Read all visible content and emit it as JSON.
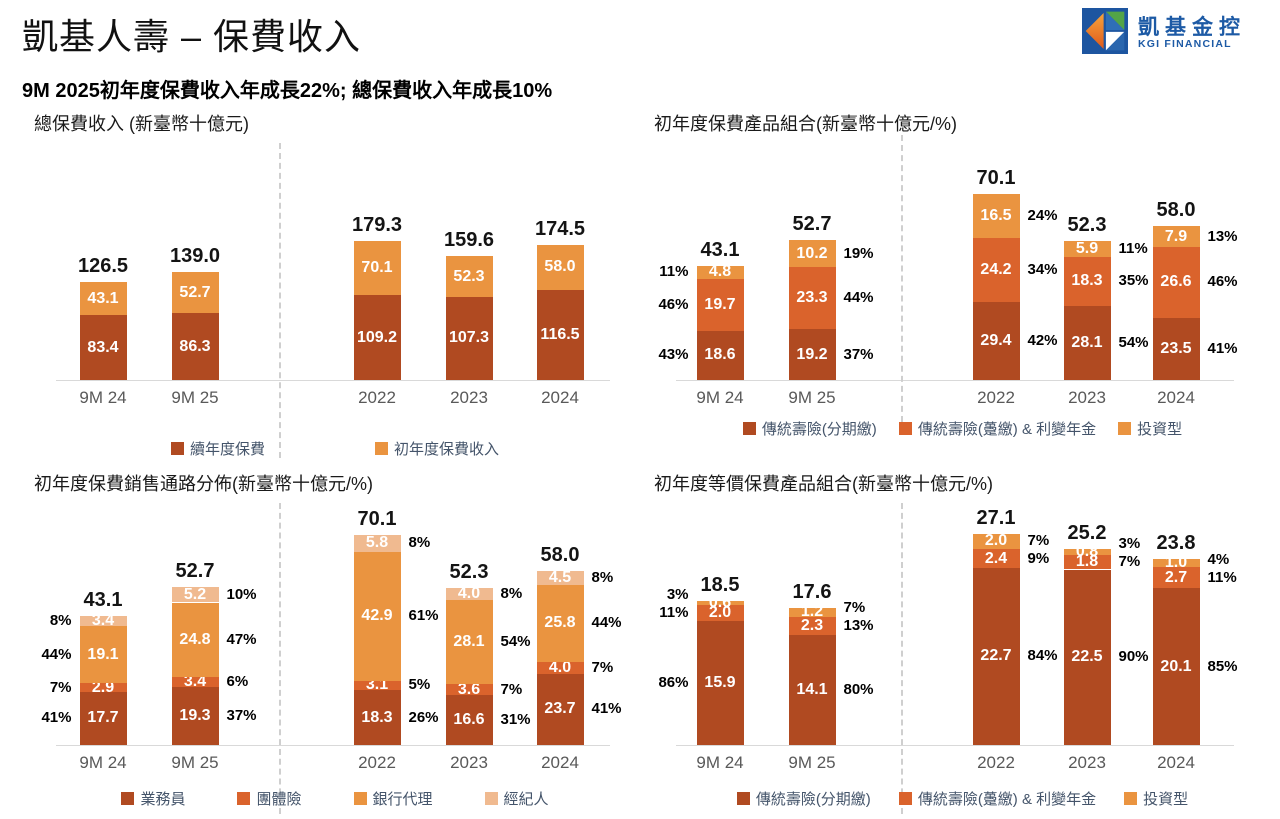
{
  "header": {
    "title": "凱基人壽 – 保費收入",
    "subtitle": "9M 2025初年度保費收入年成長22%; 總保費收入年成長10%",
    "logo": {
      "brand_zh": "凱基金控",
      "brand_en": "KGI FINANCIAL"
    }
  },
  "colors": {
    "dark": "#B04A21",
    "mid": "#DA632C",
    "orange": "#EA9440",
    "peach": "#F0BA90",
    "legend_text": "#44546A",
    "axis_label": "#595959",
    "logo_blue": "#1D5AA5"
  },
  "chart_data": [
    {
      "type": "bar",
      "stacked": true,
      "title": "總保費收入 (新臺幣十億元)",
      "unit": "新臺幣十億元",
      "categories": [
        "9M 24",
        "9M 25",
        "2022",
        "2023",
        "2024"
      ],
      "series": [
        {
          "name": "續年度保費",
          "color": "dark",
          "values": [
            "83.4",
            "86.3",
            "109.2",
            "107.3",
            "116.5"
          ]
        },
        {
          "name": "初年度保費收入",
          "color": "orange",
          "values": [
            "43.1",
            "52.7",
            "70.1",
            "52.3",
            "58.0"
          ]
        }
      ],
      "totals": [
        "126.5",
        "139.0",
        "179.3",
        "159.6",
        "174.5"
      ],
      "legend_position": "bottom"
    },
    {
      "type": "bar",
      "stacked": true,
      "title": "初年度保費產品組合(新臺幣十億元/%)",
      "unit": "新臺幣十億元/%",
      "categories": [
        "9M 24",
        "9M 25",
        "2022",
        "2023",
        "2024"
      ],
      "series": [
        {
          "name": "傳統壽險(分期繳)",
          "color": "dark",
          "values": [
            "18.6",
            "19.2",
            "29.4",
            "28.1",
            "23.5"
          ],
          "percents": [
            "43%",
            "37%",
            "42%",
            "54%",
            "41%"
          ]
        },
        {
          "name": "傳統壽險(躉繳) & 利變年金",
          "color": "mid",
          "values": [
            "19.7",
            "23.3",
            "24.2",
            "18.3",
            "26.6"
          ],
          "percents": [
            "46%",
            "44%",
            "34%",
            "35%",
            "46%"
          ]
        },
        {
          "name": "投資型",
          "color": "orange",
          "values": [
            "4.8",
            "10.2",
            "16.5",
            "5.9",
            "7.9"
          ],
          "percents": [
            "11%",
            "19%",
            "24%",
            "11%",
            "13%"
          ]
        }
      ],
      "totals": [
        "43.1",
        "52.7",
        "70.1",
        "52.3",
        "58.0"
      ],
      "legend_position": "bottom"
    },
    {
      "type": "bar",
      "stacked": true,
      "title": "初年度保費銷售通路分佈(新臺幣十億元/%)",
      "unit": "新臺幣十億元/%",
      "categories": [
        "9M 24",
        "9M 25",
        "2022",
        "2023",
        "2024"
      ],
      "series": [
        {
          "name": "業務員",
          "color": "dark",
          "values": [
            "17.7",
            "19.3",
            "18.3",
            "16.6",
            "23.7"
          ],
          "percents": [
            "41%",
            "37%",
            "26%",
            "31%",
            "41%"
          ]
        },
        {
          "name": "團體險",
          "color": "mid",
          "values": [
            "2.9",
            "3.4",
            "3.1",
            "3.6",
            "4.0"
          ],
          "percents": [
            "7%",
            "6%",
            "5%",
            "7%",
            "7%"
          ]
        },
        {
          "name": "銀行代理",
          "color": "orange",
          "values": [
            "19.1",
            "24.8",
            "42.9",
            "28.1",
            "25.8"
          ],
          "percents": [
            "44%",
            "47%",
            "61%",
            "54%",
            "44%"
          ]
        },
        {
          "name": "經紀人",
          "color": "peach",
          "values": [
            "3.4",
            "5.2",
            "5.8",
            "4.0",
            "4.5"
          ],
          "percents": [
            "8%",
            "10%",
            "8%",
            "8%",
            "8%"
          ]
        }
      ],
      "totals": [
        "43.1",
        "52.7",
        "70.1",
        "52.3",
        "58.0"
      ],
      "legend_position": "bottom"
    },
    {
      "type": "bar",
      "stacked": true,
      "title": "初年度等價保費產品組合(新臺幣十億元/%)",
      "unit": "新臺幣十億元/%",
      "categories": [
        "9M 24",
        "9M 25",
        "2022",
        "2023",
        "2024"
      ],
      "series": [
        {
          "name": "傳統壽險(分期繳)",
          "color": "dark",
          "values": [
            "15.9",
            "14.1",
            "22.7",
            "22.5",
            "20.1"
          ],
          "percents": [
            "86%",
            "80%",
            "84%",
            "90%",
            "85%"
          ]
        },
        {
          "name": "傳統壽險(躉繳) & 利變年金",
          "color": "mid",
          "values": [
            "2.0",
            "2.3",
            "2.4",
            "1.8",
            "2.7"
          ],
          "percents": [
            "11%",
            "13%",
            "9%",
            "7%",
            "11%"
          ]
        },
        {
          "name": "投資型",
          "color": "orange",
          "values": [
            "0.6",
            "1.2",
            "2.0",
            "0.8",
            "1.0"
          ],
          "percents": [
            "3%",
            "7%",
            "7%",
            "3%",
            "4%"
          ]
        }
      ],
      "totals": [
        "18.5",
        "17.6",
        "27.1",
        "25.2",
        "23.8"
      ],
      "legend_position": "bottom"
    }
  ]
}
